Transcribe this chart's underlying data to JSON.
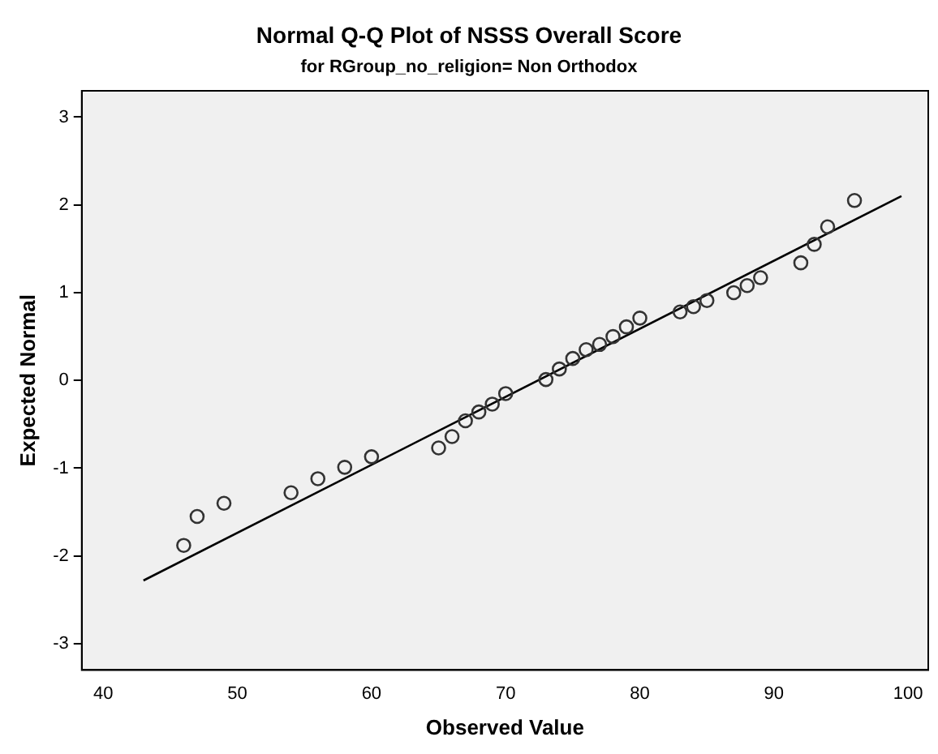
{
  "chart_data": {
    "type": "scatter",
    "title": "Normal Q-Q Plot of NSSS Overall Score",
    "subtitle": "for RGroup_no_religion= Non Orthodox",
    "xlabel": "Observed Value",
    "ylabel": "Expected Normal",
    "xlim": [
      38.4,
      101.5
    ],
    "xticks": [
      40,
      50,
      60,
      70,
      80,
      90,
      100
    ],
    "ylim": [
      -3.3,
      3.3
    ],
    "yticks": [
      -3,
      -2,
      -1,
      0,
      1,
      2,
      3
    ],
    "grid": false,
    "legend": false,
    "series": [
      {
        "marker": "circle",
        "color": "#333333",
        "x": [
          46,
          47,
          49,
          54,
          56,
          58,
          60,
          65,
          66,
          67,
          68,
          69,
          70,
          73,
          74,
          75,
          76,
          77,
          78,
          79,
          80,
          83,
          84,
          85,
          87,
          88,
          89,
          92,
          93,
          94,
          96
        ],
        "values": [
          -1.88,
          -1.55,
          -1.4,
          -1.28,
          -1.12,
          -0.99,
          -0.87,
          -0.77,
          -0.64,
          -0.46,
          -0.36,
          -0.27,
          -0.15,
          0.01,
          0.13,
          0.25,
          0.35,
          0.41,
          0.5,
          0.61,
          0.71,
          0.78,
          0.84,
          0.91,
          1.0,
          1.08,
          1.17,
          1.34,
          1.55,
          1.75,
          2.05
        ]
      },
      {
        "type": "line",
        "marker": "none",
        "color": "#000000",
        "x": [
          43,
          99.5
        ],
        "values": [
          -2.28,
          2.1
        ]
      }
    ]
  }
}
